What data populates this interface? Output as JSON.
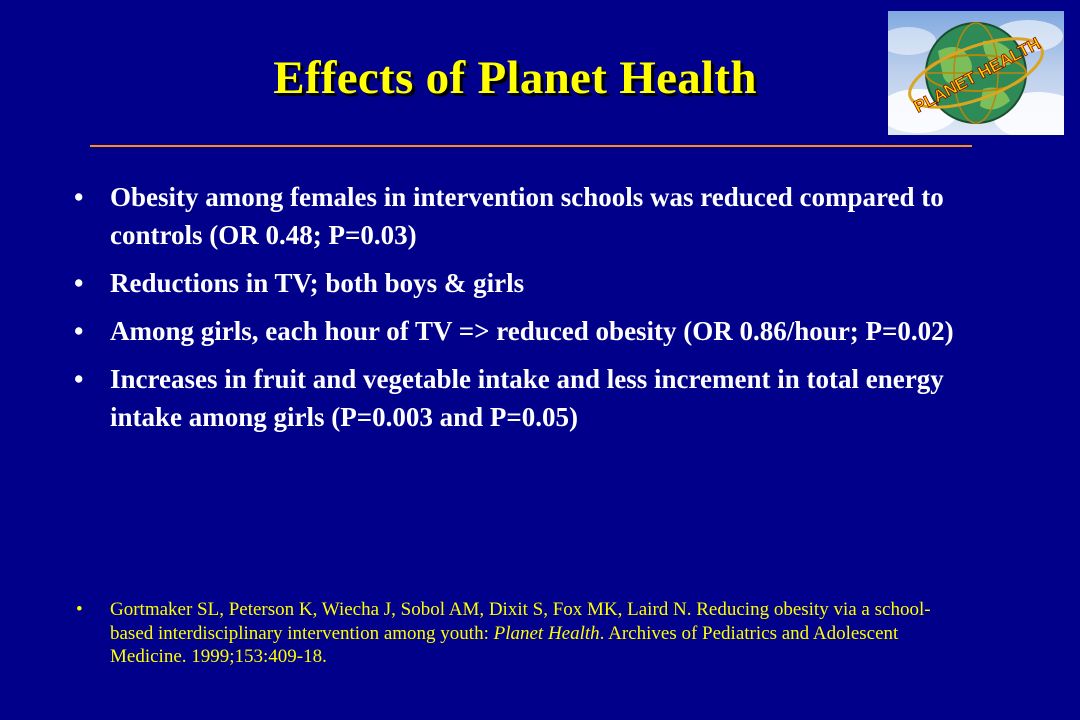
{
  "slide": {
    "title": "Effects of Planet Health",
    "bullet_symbol": "•",
    "bullets": [
      {
        "text": "Obesity among females in intervention schools was reduced compared to controls (OR 0.48; P=0.03)"
      },
      {
        "text": "Reductions in TV; both boys & girls"
      },
      {
        "text": "Among girls, each hour of TV => reduced obesity (OR 0.86/hour; P=0.02)"
      },
      {
        "text": "Increases in fruit and vegetable intake and less increment in total energy intake among girls (P=0.003 and P=0.05)"
      }
    ],
    "reference": {
      "before": "Gortmaker SL, Peterson K, Wiecha J, Sobol AM, Dixit S, Fox MK, Laird N. Reducing obesity via a school-based interdisciplinary intervention among youth: ",
      "italic": "Planet Health",
      "after": ". Archives of Pediatrics and Adolescent Medicine. 1999;153:409-18."
    },
    "logo": {
      "text": "PLANET HEALTH",
      "icon": "planet-health-globe-logo"
    }
  },
  "colors": {
    "background": "#00008b",
    "title": "#ffff00",
    "body_text": "#ffffff",
    "reference_text": "#ffff00",
    "rule": "#ff8c1a"
  }
}
